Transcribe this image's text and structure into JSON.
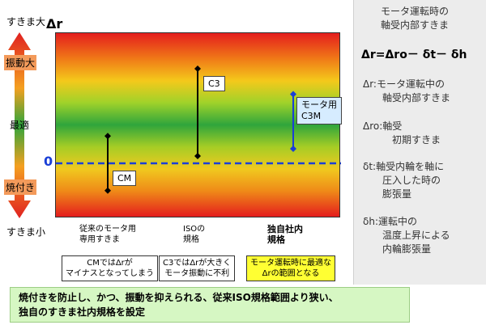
{
  "left": {
    "y_top_label": "すきま大",
    "y_bottom_label": "すきま小",
    "delta_r_symbol": "Δr",
    "zone_vibration": "振動大",
    "zone_optimal": "最適",
    "zone_seizure": "焼付き",
    "zero_label": "0"
  },
  "bars": [
    {
      "label": "CM",
      "ymin": -0.75,
      "ymax": 0.75
    },
    {
      "label": "C3",
      "ymin": 0.2,
      "ymax": 2.6
    },
    {
      "label": "モータ用\nC3M",
      "ymin": 0.4,
      "ymax": 1.9
    }
  ],
  "columns": {
    "col1": "従来のモータ用\n専用すきま",
    "col2": "ISOの\n規格",
    "col3": "独自社内\n規格"
  },
  "notes": {
    "note1": "CMではΔrが\nマイナスとなってしまう",
    "note2": "C3ではΔrが大きく\nモータ振動に不利",
    "note3": "モータ運転時に最適な\nΔrの範囲となる"
  },
  "banner": {
    "line1": "焼付きを防止し、かつ、振動を抑えられる、従来ISO規格範囲より狭い、",
    "line2": "独自のすきま社内規格を設定"
  },
  "right": {
    "title": "モータ運転時の\n軸受内部すきま",
    "formula": "Δr=Δro－ δt－ δh",
    "def1": "Δr:モータ運転中の\n　　軸受内部すきま",
    "def2": "Δro:軸受\n　　　初期すきま",
    "def3": "δt:軸受内輪を軸に\n　　圧入した時の\n　　膨張量",
    "def4": "δh:運転中の\n　　温度上昇による\n　　内輪膨張量"
  },
  "colors": {
    "arrow_red": "#e02020",
    "arrow_green": "#2fa53c",
    "zero_line": "#1a3fd6",
    "bar_black": "#000000",
    "bar_blue": "#1a3fd6",
    "note_yellow": "#ffff33",
    "banner_green": "#d6f7c3"
  }
}
